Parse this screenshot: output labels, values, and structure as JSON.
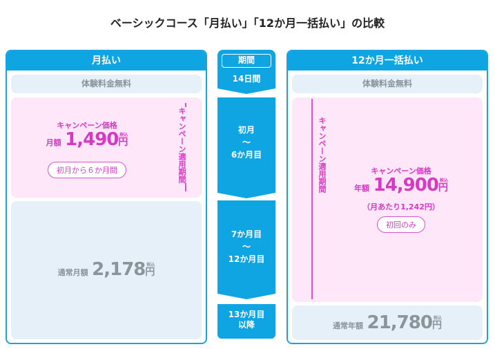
{
  "title": "ベーシックコース「月払い」「12か月一括払い」の比較",
  "monthly": {
    "header": "月払い",
    "trial": "体験料金無料",
    "campaign_label": "キャンペーン価格",
    "price_prefix": "月額",
    "price": "1,490",
    "yen": "円",
    "tax": "税込",
    "pill": "初月から６か月間",
    "period_label": "キャンペーン適用期間",
    "regular_prefix": "通常月額",
    "regular_price": "2,178"
  },
  "period": {
    "header": "期間",
    "steps": [
      {
        "label": "14日間"
      },
      {
        "line1": "初月",
        "tilde": "～",
        "line2": "6か月目"
      },
      {
        "line1": "7か月目",
        "tilde": "～",
        "line2": "12か月目"
      },
      {
        "line1": "13か月目",
        "line2": "以降"
      }
    ]
  },
  "annual": {
    "header": "12か月一括払い",
    "trial": "体験料金無料",
    "campaign_label": "キャンペーン価格",
    "price_prefix": "年額",
    "price": "14,900",
    "yen": "円",
    "tax": "税込",
    "per_month": "（月あたり1,242円）",
    "pill": "初回のみ",
    "period_label": "キャンペーン適用期間",
    "regular_prefix": "通常年額",
    "regular_price": "21,780"
  },
  "colors": {
    "accent": "#0fa5e3",
    "campaign": "#d63ac4",
    "muted": "#8a949b"
  }
}
